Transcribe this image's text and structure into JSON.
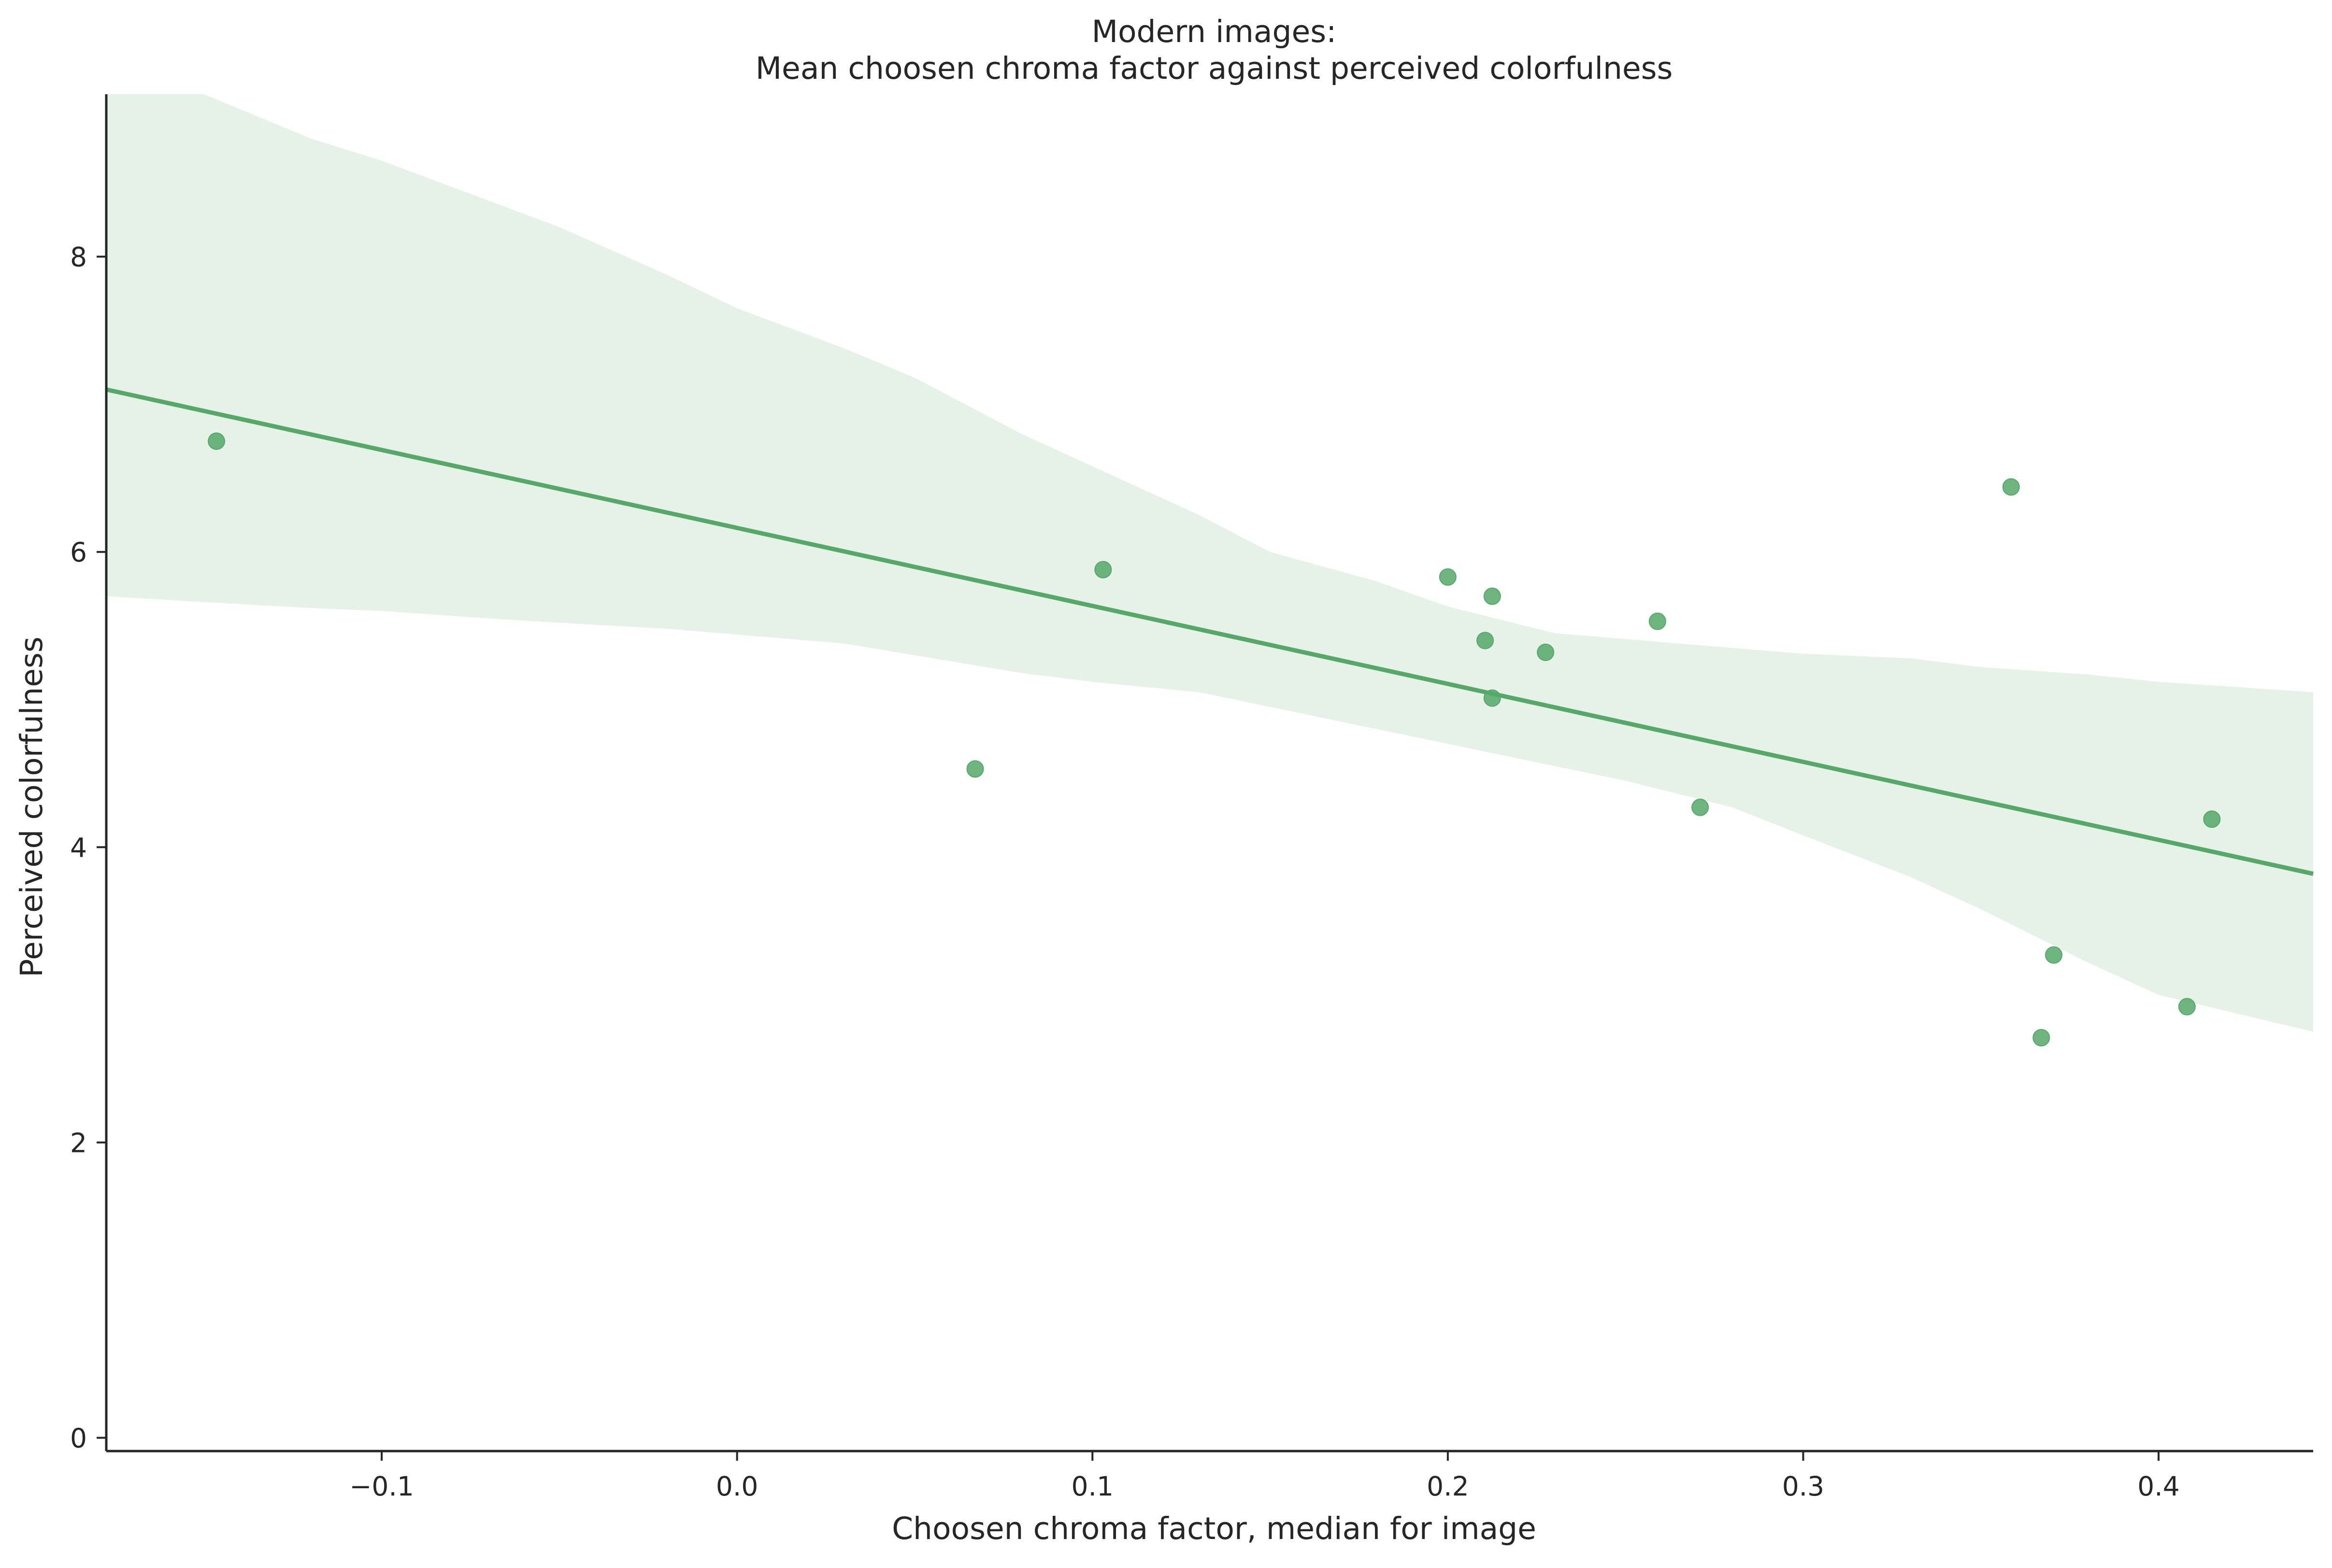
{
  "chart_data": {
    "type": "scatter",
    "title_lines": [
      "Modern images:",
      "Mean choosen chroma factor against perceived colorfulness"
    ],
    "xlabel": "Choosen chroma factor, median for image",
    "ylabel": "Perceived colorfulness",
    "xlim": [
      -0.1775,
      0.4435
    ],
    "ylim": [
      -0.09,
      9.1
    ],
    "x_ticks": [
      {
        "value": -0.1,
        "label": "−0.1"
      },
      {
        "value": 0.0,
        "label": "0.0"
      },
      {
        "value": 0.1,
        "label": "0.1"
      },
      {
        "value": 0.2,
        "label": "0.2"
      },
      {
        "value": 0.3,
        "label": "0.3"
      },
      {
        "value": 0.4,
        "label": "0.4"
      }
    ],
    "y_ticks": [
      {
        "value": 0,
        "label": "0"
      },
      {
        "value": 2,
        "label": "2"
      },
      {
        "value": 4,
        "label": "4"
      },
      {
        "value": 6,
        "label": "6"
      },
      {
        "value": 8,
        "label": "8"
      }
    ],
    "grid": false,
    "points": [
      {
        "x": -0.1465,
        "y": 6.75
      },
      {
        "x": 0.067,
        "y": 4.53
      },
      {
        "x": 0.103,
        "y": 5.88
      },
      {
        "x": 0.2,
        "y": 5.83
      },
      {
        "x": 0.2105,
        "y": 5.4
      },
      {
        "x": 0.2125,
        "y": 5.7
      },
      {
        "x": 0.2125,
        "y": 5.01
      },
      {
        "x": 0.2275,
        "y": 5.32
      },
      {
        "x": 0.259,
        "y": 5.53
      },
      {
        "x": 0.271,
        "y": 4.27
      },
      {
        "x": 0.3585,
        "y": 6.44
      },
      {
        "x": 0.367,
        "y": 2.71
      },
      {
        "x": 0.3705,
        "y": 3.27
      },
      {
        "x": 0.408,
        "y": 2.92
      },
      {
        "x": 0.415,
        "y": 4.19
      }
    ],
    "regression_line": {
      "x": [
        -0.1775,
        0.4435
      ],
      "y": [
        7.1,
        3.82
      ]
    },
    "confidence_band": {
      "x": [
        -0.1775,
        -0.15,
        -0.12,
        -0.1,
        -0.07,
        -0.05,
        -0.02,
        0.0,
        0.03,
        0.05,
        0.08,
        0.1,
        0.13,
        0.15,
        0.18,
        0.2,
        0.23,
        0.25,
        0.28,
        0.3,
        0.33,
        0.35,
        0.38,
        0.4,
        0.4435
      ],
      "upper": [
        9.15,
        9.1,
        8.8,
        8.65,
        8.38,
        8.2,
        7.88,
        7.65,
        7.38,
        7.18,
        6.8,
        6.58,
        6.25,
        6.0,
        5.8,
        5.63,
        5.45,
        5.41,
        5.35,
        5.31,
        5.28,
        5.22,
        5.17,
        5.12,
        5.05
      ],
      "lower": [
        5.7,
        5.66,
        5.62,
        5.6,
        5.55,
        5.52,
        5.48,
        5.44,
        5.38,
        5.3,
        5.18,
        5.12,
        5.05,
        4.95,
        4.8,
        4.7,
        4.55,
        4.45,
        4.27,
        4.08,
        3.8,
        3.58,
        3.22,
        3.0,
        2.75
      ]
    },
    "colors": {
      "line": "#55a868",
      "points": "#55a868",
      "band": "#55a868",
      "axis": "#262626",
      "text": "#262626"
    }
  }
}
